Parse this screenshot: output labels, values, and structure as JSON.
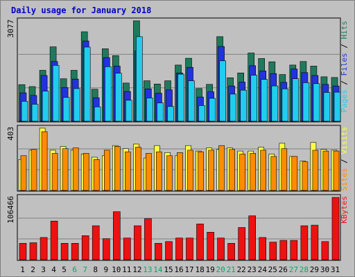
{
  "chart_data": {
    "type": "bar",
    "title": "Daily usage for January 2018",
    "categories": [
      "1",
      "2",
      "3",
      "4",
      "5",
      "6",
      "7",
      "8",
      "9",
      "10",
      "11",
      "12",
      "13",
      "14",
      "15",
      "16",
      "17",
      "18",
      "19",
      "20",
      "21",
      "22",
      "23",
      "24",
      "25",
      "26",
      "27",
      "28",
      "29",
      "30",
      "31"
    ],
    "weekend_days": [
      "6",
      "7",
      "13",
      "14",
      "20",
      "21",
      "27",
      "28"
    ],
    "panels": [
      {
        "id": "hits",
        "max_label": "3077",
        "ymax": 3077,
        "legend": [
          "Pages",
          "Files",
          "Hits"
        ],
        "series": [
          {
            "name": "Hits",
            "color": "#1f7a5c",
            "values": [
              1120,
              1060,
              1560,
              2280,
              1300,
              1560,
              2740,
              980,
              2220,
              2010,
              1170,
              3077,
              1240,
              1140,
              1240,
              1720,
              1930,
              1000,
              1130,
              2590,
              1330,
              1480,
              2090,
              1920,
              1820,
              1430,
              1720,
              1830,
              1690,
              1360,
              1340
            ]
          },
          {
            "name": "Files",
            "color": "#2233dd",
            "values": [
              870,
              790,
              1400,
              1830,
              1030,
              1290,
              2460,
              720,
              1950,
              1690,
              910,
              2150,
              990,
              860,
              960,
              1480,
              1650,
              740,
              900,
              2290,
              1080,
              1200,
              1700,
              1540,
              1460,
              1190,
              1600,
              1490,
              1400,
              1130,
              1080
            ]
          },
          {
            "name": "Pages",
            "color": "#22ccee",
            "values": [
              610,
              520,
              920,
              1710,
              730,
              1000,
              2270,
              440,
              1670,
              1470,
              640,
              2590,
              710,
              560,
              450,
              1440,
              1240,
              480,
              700,
              1850,
              830,
              950,
              1410,
              1280,
              1080,
              990,
              1300,
              1180,
              1150,
              880,
              890
            ]
          }
        ]
      },
      {
        "id": "visits",
        "max_label": "403",
        "ymax": 403,
        "legend": [
          "Sites",
          "Visits"
        ],
        "series": [
          {
            "name": "Visits",
            "color": "#ffff44",
            "values": [
              200,
              260,
              403,
              260,
              285,
              260,
              235,
              215,
              225,
              290,
              270,
              300,
              210,
              290,
              245,
              225,
              290,
              255,
              275,
              265,
              275,
              255,
              255,
              280,
              235,
              305,
              220,
              190,
              310,
              265,
              260
            ]
          },
          {
            "name": "Sites",
            "color": "#ff8c00",
            "values": [
              225,
              265,
              380,
              240,
              270,
              275,
              240,
              200,
              260,
              285,
              250,
              280,
              240,
              250,
              225,
              245,
              260,
              250,
              260,
              290,
              265,
              235,
              240,
              260,
              220,
              270,
              220,
              185,
              260,
              255,
              255
            ]
          }
        ]
      },
      {
        "id": "kbytes",
        "max_label": "106466",
        "ymax": 106466,
        "legend": [
          "KBytes"
        ],
        "series": [
          {
            "name": "KBytes",
            "color": "#ee1111",
            "values": [
              28000,
              29000,
              38000,
              66000,
              28000,
              28000,
              41000,
              58000,
              36000,
              82000,
              37000,
              58000,
              70000,
              28000,
              31000,
              37000,
              37000,
              61000,
              47000,
              37000,
              28000,
              55000,
              75000,
              38000,
              30000,
              33000,
              33000,
              58000,
              59000,
              31000,
              106466
            ]
          }
        ]
      }
    ]
  }
}
